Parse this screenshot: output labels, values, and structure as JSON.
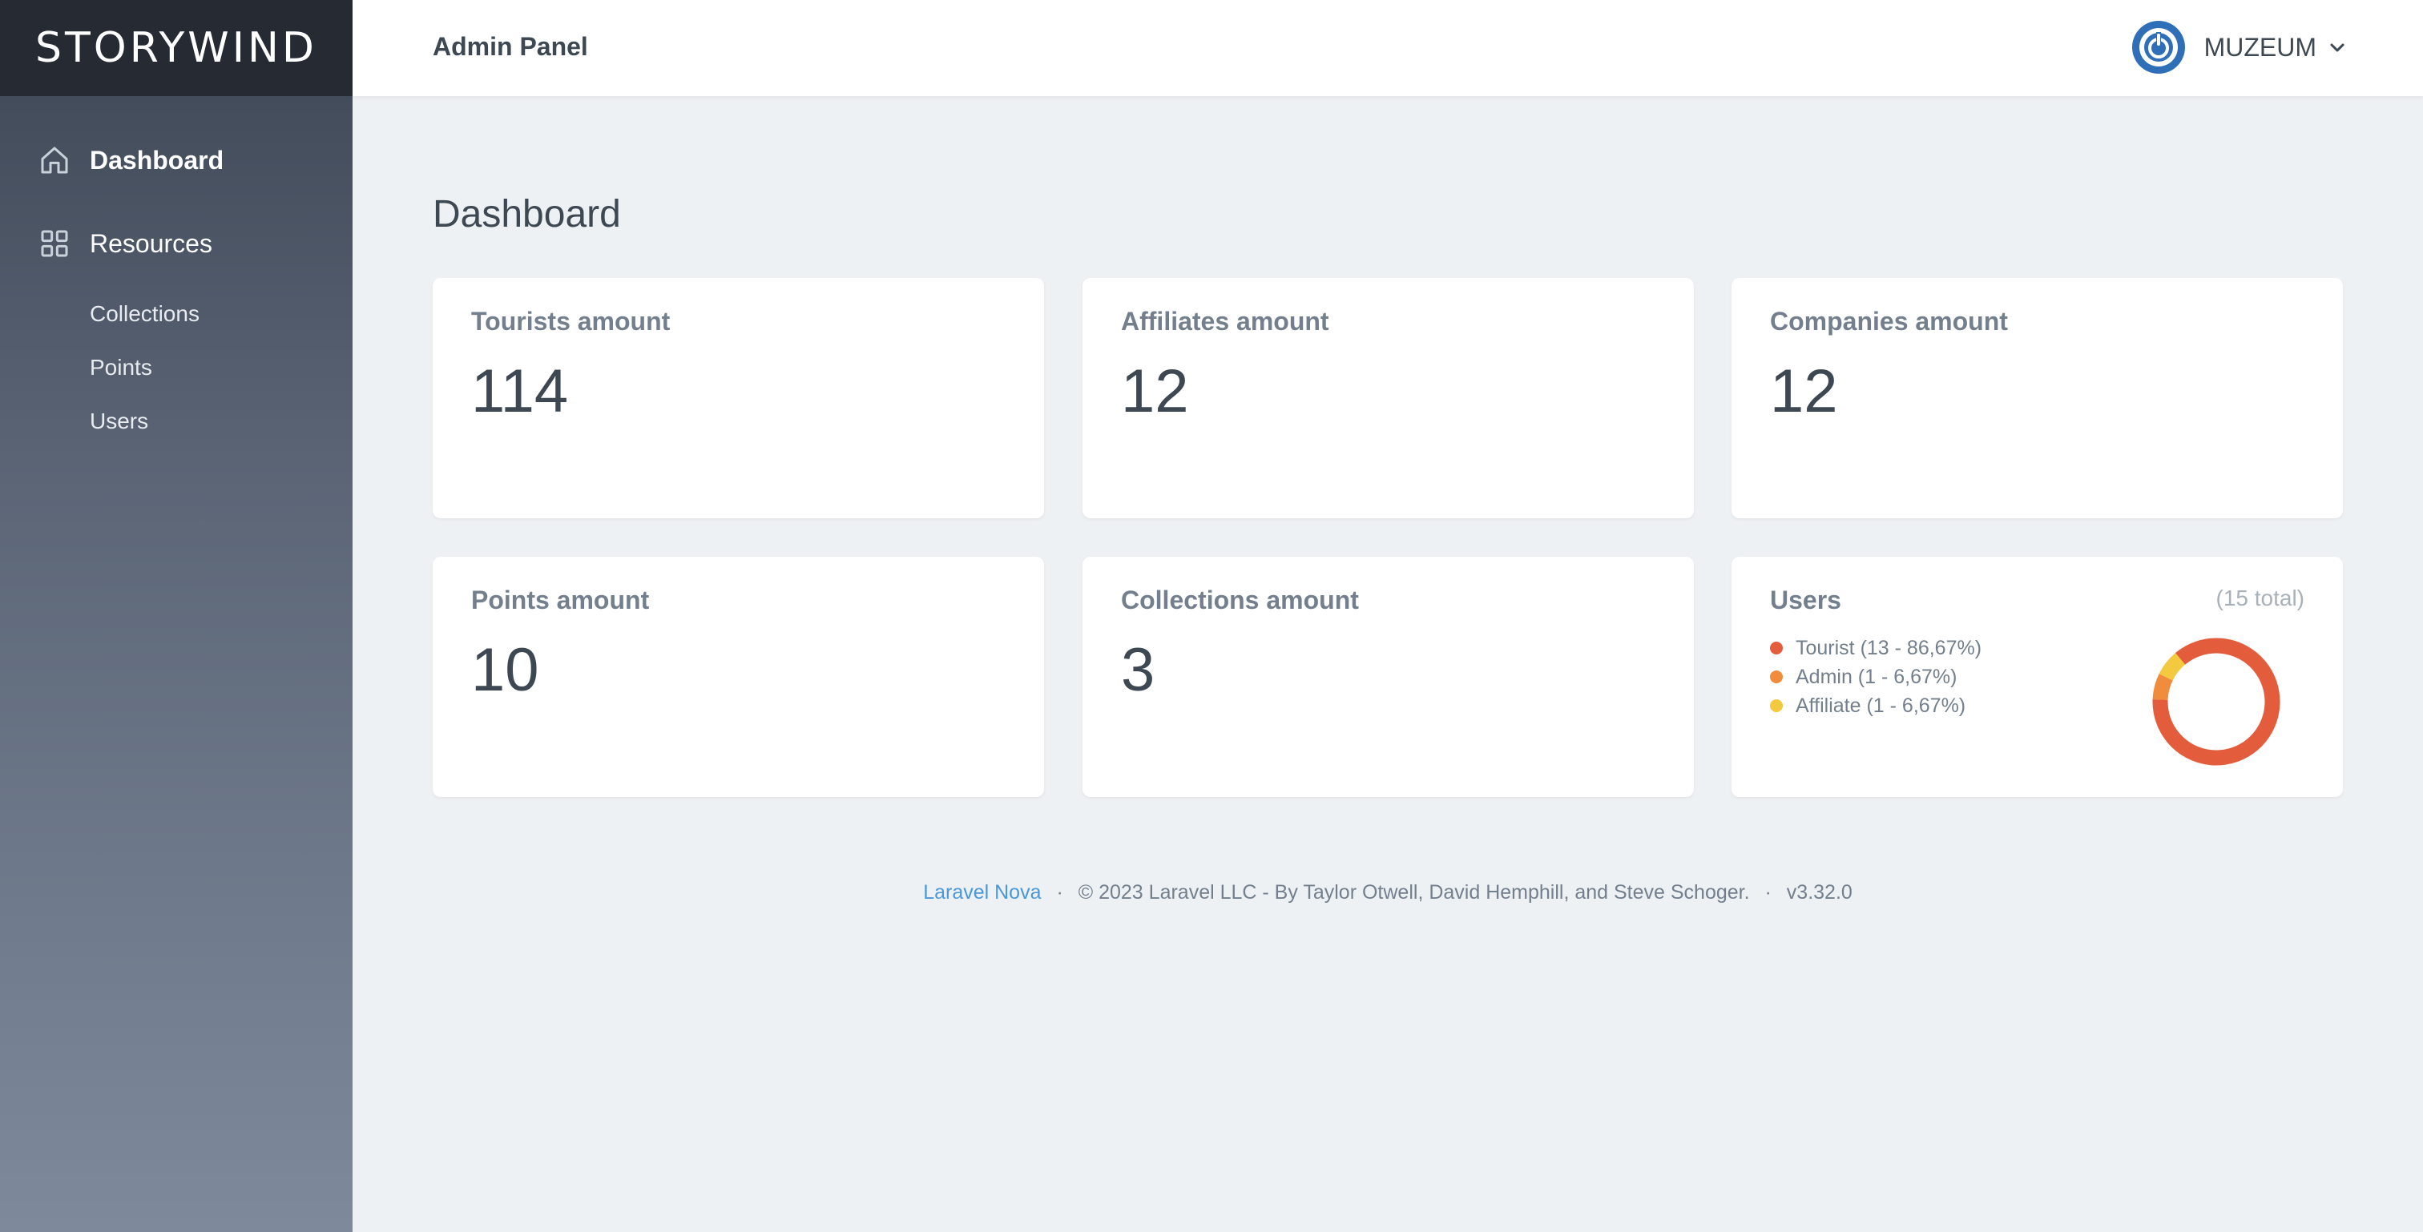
{
  "brand": "STORYWIND",
  "header": {
    "title": "Admin Panel",
    "user": "MUZEUM"
  },
  "sidebar": {
    "dashboard": "Dashboard",
    "resources": "Resources",
    "items": [
      "Collections",
      "Points",
      "Users"
    ]
  },
  "page_title": "Dashboard",
  "metrics": [
    {
      "label": "Tourists amount",
      "value": "114"
    },
    {
      "label": "Affiliates amount",
      "value": "12"
    },
    {
      "label": "Companies amount",
      "value": "12"
    },
    {
      "label": "Points amount",
      "value": "10"
    },
    {
      "label": "Collections amount",
      "value": "3"
    }
  ],
  "users_card": {
    "label": "Users",
    "total": "(15 total)",
    "legend": [
      "Tourist (13 - 86,67%)",
      "Admin (1 - 6,67%)",
      "Affiliate (1 - 6,67%)"
    ]
  },
  "chart_data": {
    "type": "pie",
    "categories": [
      "Tourist",
      "Admin",
      "Affiliate"
    ],
    "values": [
      13,
      1,
      1
    ],
    "colors": [
      "#e35d3c",
      "#f08c3c",
      "#f3c93f"
    ],
    "title": "Users"
  },
  "footer": {
    "link": "Laravel Nova",
    "copyright": "© 2023 Laravel LLC - By Taylor Otwell, David Hemphill, and Steve Schoger.",
    "version": "v3.32.0"
  }
}
